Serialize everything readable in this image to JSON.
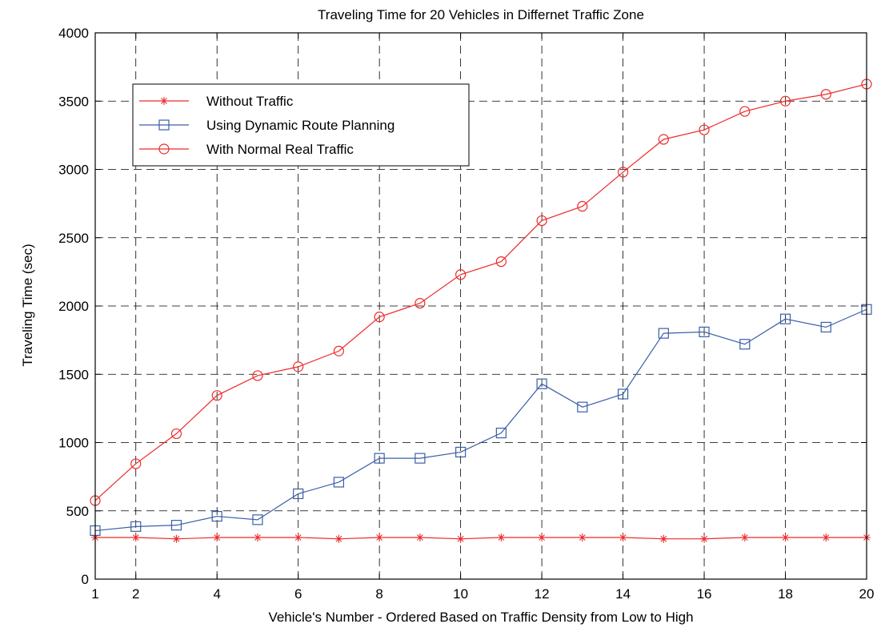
{
  "chart_data": {
    "type": "line",
    "title": "Traveling Time for 20 Vehicles in Differnet Traffic Zone",
    "xlabel": "Vehicle's Number - Ordered Based on Traffic Density from Low to High",
    "ylabel": "Traveling Time (sec)",
    "xlim": [
      1,
      20
    ],
    "ylim": [
      0,
      4000
    ],
    "xticks": [
      1,
      2,
      4,
      6,
      8,
      10,
      12,
      14,
      16,
      18,
      20
    ],
    "yticks": [
      0,
      500,
      1000,
      1500,
      2000,
      2500,
      3000,
      3500,
      4000
    ],
    "grid": true,
    "legend_position": "top-left",
    "x": [
      1,
      2,
      3,
      4,
      5,
      6,
      7,
      8,
      9,
      10,
      11,
      12,
      13,
      14,
      15,
      16,
      17,
      18,
      19,
      20
    ],
    "series": [
      {
        "name": "Without Traffic",
        "marker": "asterisk",
        "color": "#ee2a2a",
        "values": [
          305,
          305,
          295,
          305,
          305,
          305,
          295,
          305,
          305,
          295,
          305,
          305,
          305,
          305,
          295,
          295,
          305,
          305,
          305,
          305
        ]
      },
      {
        "name": "Using Dynamic Route Planning",
        "marker": "square",
        "color": "#3a5fa8",
        "values": [
          355,
          385,
          395,
          460,
          435,
          625,
          710,
          885,
          885,
          930,
          1070,
          1430,
          1260,
          1355,
          1800,
          1810,
          1720,
          1905,
          1845,
          1975
        ]
      },
      {
        "name": "With Normal Real Traffic",
        "marker": "circle",
        "color": "#ee2a2a",
        "values": [
          575,
          845,
          1065,
          1345,
          1490,
          1555,
          1670,
          1920,
          2020,
          2230,
          2325,
          2625,
          2730,
          2980,
          3220,
          3290,
          3425,
          3500,
          3550,
          3625
        ]
      }
    ]
  }
}
